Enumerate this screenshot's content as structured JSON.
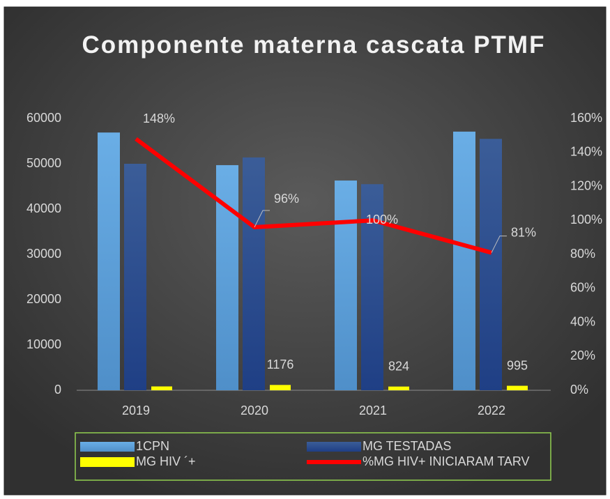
{
  "chart_data": {
    "type": "bar-line",
    "title": "Componente materna cascata PTMF",
    "categories": [
      "2019",
      "2020",
      "2021",
      "2022"
    ],
    "series": [
      {
        "name": "1CPN",
        "color": "#5b9bd5",
        "values": [
          56900,
          49700,
          46300,
          57100
        ]
      },
      {
        "name": "MG TESTADAS",
        "color": "#2e4d8c",
        "values": [
          50000,
          51400,
          45500,
          55500
        ]
      },
      {
        "name": "MG HIV ´+",
        "color": "#ffff00",
        "values": [
          850,
          1176,
          824,
          995
        ],
        "value_labels": [
          null,
          "1176",
          "824",
          "995"
        ]
      },
      {
        "name": "%MG HIV+ INICIARAM TARV",
        "color": "#ff0000",
        "axis": "y2",
        "values": [
          148,
          96,
          100,
          81
        ],
        "value_labels": [
          "148%",
          "96%",
          "100%",
          "81%"
        ]
      }
    ],
    "ylim": [
      0,
      60000
    ],
    "yticks": [
      0,
      10000,
      20000,
      30000,
      40000,
      50000,
      60000
    ],
    "y2lim": [
      0,
      160
    ],
    "y2ticks": [
      {
        "value": 0,
        "label": "0%"
      },
      {
        "value": 20,
        "label": "20%"
      },
      {
        "value": 40,
        "label": "40%"
      },
      {
        "value": 60,
        "label": "60%"
      },
      {
        "value": 80,
        "label": "80%"
      },
      {
        "value": 100,
        "label": "100%"
      },
      {
        "value": 120,
        "label": "120%"
      },
      {
        "value": 140,
        "label": "140%"
      },
      {
        "value": 160,
        "label": "160%"
      }
    ],
    "grid": false,
    "legend": "bottom"
  }
}
